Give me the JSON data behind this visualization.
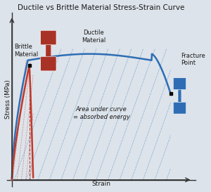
{
  "title": "Ductile vs Brittle Material Stress-Strain Curve",
  "xlabel": "Strain",
  "ylabel": "Stress (MPa)",
  "bg_color": "#dde3ea",
  "ductile_color": "#2e6db4",
  "brittle_color": "#c0392b",
  "hatch_color": "#7aa8d4",
  "red_dumbbell_color": "#a93226",
  "blue_dumbbell_color": "#2e6db4",
  "title_fontsize": 7.5,
  "label_fontsize": 6.0,
  "axis_label_fontsize": 6.5,
  "fracture_point_label": "Fracture\nPoint",
  "brittle_label": "Brittle\nMaterial",
  "ductile_label": "Ductile\nMaterial",
  "area_label": "Area under curve\n= absorbed energy"
}
